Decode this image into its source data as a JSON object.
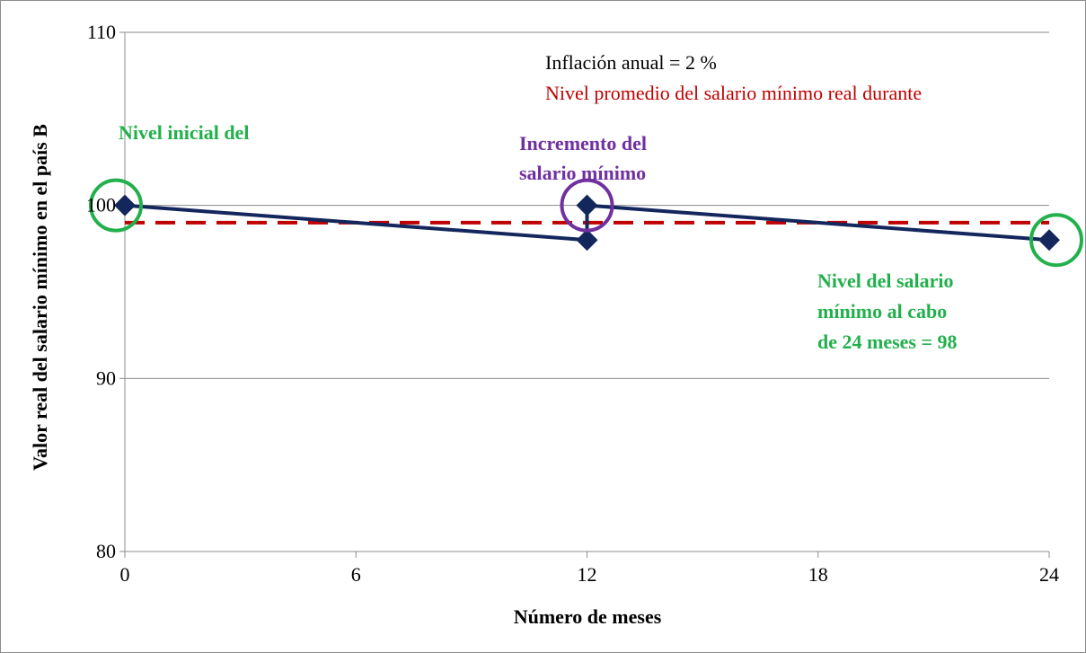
{
  "chart_data": {
    "type": "line",
    "title": "",
    "xlabel": "Número de meses",
    "ylabel": "Valor real del salario mínimo en el país B",
    "xlim": [
      0,
      24
    ],
    "ylim": [
      80,
      110
    ],
    "x_ticks": [
      "0",
      "6",
      "12",
      "18",
      "24"
    ],
    "y_ticks": [
      "80",
      "90",
      "100",
      "110"
    ],
    "grid": "horizontal",
    "series": [
      {
        "color": "#13275c",
        "marker": "diamond",
        "points": [
          [
            0,
            100
          ],
          [
            12,
            98
          ],
          [
            12,
            100
          ],
          [
            24,
            98
          ]
        ]
      },
      {
        "color": "#c00000",
        "style": "dashed",
        "points": [
          [
            0,
            99
          ],
          [
            24,
            99
          ]
        ]
      }
    ],
    "annotations": {
      "inflation": {
        "text": "Inflación anual = 2 %",
        "color": "#000000"
      },
      "average_level": {
        "text": "Nivel promedio del salario mínimo real durante",
        "color": "#c00000"
      },
      "initial_level": {
        "text": "Nivel inicial del",
        "color": "#22b04c"
      },
      "increase_line1": {
        "text": "Incremento del",
        "color": "#7030a0"
      },
      "increase_line2": {
        "text": "salario mínimo",
        "color": "#7030a0"
      },
      "final_line1": {
        "text": "Nivel del salario",
        "color": "#22b04c"
      },
      "final_line2": {
        "text": "mínimo al cabo",
        "color": "#22b04c"
      },
      "final_line3": {
        "text": "de 24 meses = 98",
        "color": "#22b04c"
      }
    },
    "circles": [
      {
        "at": [
          0,
          100
        ],
        "color": "#22b04c"
      },
      {
        "at": [
          12,
          100
        ],
        "color": "#7030a0"
      },
      {
        "at": [
          24,
          98
        ],
        "color": "#22b04c"
      }
    ]
  }
}
